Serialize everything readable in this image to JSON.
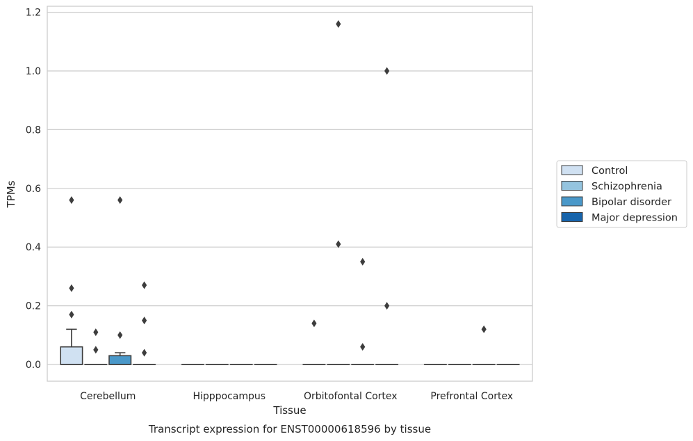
{
  "chart_data": {
    "type": "box",
    "title": "",
    "caption": "Transcript expression for ENST00000618596 by tissue",
    "xlabel": "Tissue",
    "ylabel": "TPMs",
    "ylim": [
      -0.057,
      1.22
    ],
    "yticks": [
      0.0,
      0.2,
      0.4,
      0.6,
      0.8,
      1.0,
      1.2
    ],
    "ytick_labels": [
      "0.0",
      "0.2",
      "0.4",
      "0.6",
      "0.8",
      "1.0",
      "1.2"
    ],
    "grid": "horizontal",
    "legend_position": "right",
    "categories": [
      "Cerebellum",
      "Hipppocampus",
      "Orbitofontal Cortex",
      "Prefrontal Cortex"
    ],
    "series": [
      {
        "name": "Control",
        "color": "#d0e1f2",
        "boxes": [
          {
            "q1": 0.0,
            "median": 0.0,
            "q3": 0.06,
            "whisker_low": 0.0,
            "whisker_high": 0.12,
            "outliers": [
              0.17,
              0.26,
              0.56
            ]
          },
          {
            "q1": 0.0,
            "median": 0.0,
            "q3": 0.0,
            "whisker_low": 0.0,
            "whisker_high": 0.0,
            "outliers": []
          },
          {
            "q1": 0.0,
            "median": 0.0,
            "q3": 0.0,
            "whisker_low": 0.0,
            "whisker_high": 0.0,
            "outliers": [
              0.14
            ]
          },
          {
            "q1": 0.0,
            "median": 0.0,
            "q3": 0.0,
            "whisker_low": 0.0,
            "whisker_high": 0.0,
            "outliers": []
          }
        ]
      },
      {
        "name": "Schizophrenia",
        "color": "#94c4df",
        "boxes": [
          {
            "q1": 0.0,
            "median": 0.0,
            "q3": 0.0,
            "whisker_low": 0.0,
            "whisker_high": 0.0,
            "outliers": [
              0.05,
              0.11
            ]
          },
          {
            "q1": 0.0,
            "median": 0.0,
            "q3": 0.0,
            "whisker_low": 0.0,
            "whisker_high": 0.0,
            "outliers": []
          },
          {
            "q1": 0.0,
            "median": 0.0,
            "q3": 0.0,
            "whisker_low": 0.0,
            "whisker_high": 0.0,
            "outliers": [
              1.16,
              0.41
            ]
          },
          {
            "q1": 0.0,
            "median": 0.0,
            "q3": 0.0,
            "whisker_low": 0.0,
            "whisker_high": 0.0,
            "outliers": []
          }
        ]
      },
      {
        "name": "Bipolar disorder",
        "color": "#4a98c9",
        "boxes": [
          {
            "q1": 0.0,
            "median": 0.0,
            "q3": 0.03,
            "whisker_low": 0.0,
            "whisker_high": 0.04,
            "outliers": [
              0.1,
              0.56
            ]
          },
          {
            "q1": 0.0,
            "median": 0.0,
            "q3": 0.0,
            "whisker_low": 0.0,
            "whisker_high": 0.0,
            "outliers": []
          },
          {
            "q1": 0.0,
            "median": 0.0,
            "q3": 0.0,
            "whisker_low": 0.0,
            "whisker_high": 0.0,
            "outliers": [
              0.06,
              0.35
            ]
          },
          {
            "q1": 0.0,
            "median": 0.0,
            "q3": 0.0,
            "whisker_low": 0.0,
            "whisker_high": 0.0,
            "outliers": [
              0.12
            ]
          }
        ]
      },
      {
        "name": "Major depression",
        "color": "#1764ab",
        "boxes": [
          {
            "q1": 0.0,
            "median": 0.0,
            "q3": 0.0,
            "whisker_low": 0.0,
            "whisker_high": 0.0,
            "outliers": [
              0.04,
              0.15,
              0.27
            ]
          },
          {
            "q1": 0.0,
            "median": 0.0,
            "q3": 0.0,
            "whisker_low": 0.0,
            "whisker_high": 0.0,
            "outliers": []
          },
          {
            "q1": 0.0,
            "median": 0.0,
            "q3": 0.0,
            "whisker_low": 0.0,
            "whisker_high": 0.0,
            "outliers": [
              0.2,
              1.0
            ]
          },
          {
            "q1": 0.0,
            "median": 0.0,
            "q3": 0.0,
            "whisker_low": 0.0,
            "whisker_high": 0.0,
            "outliers": []
          }
        ]
      }
    ]
  }
}
